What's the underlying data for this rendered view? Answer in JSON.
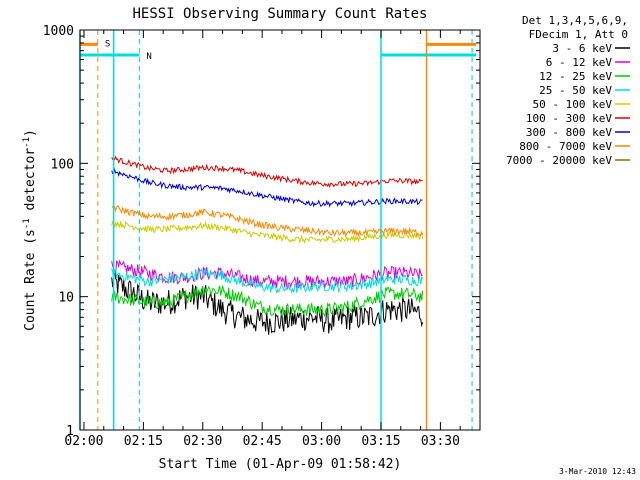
{
  "chart_data": {
    "type": "line",
    "title": "HESSI Observing Summary Count Rates",
    "xlabel": "Start Time (01-Apr-09 01:58:42)",
    "ylabel_main": "Count Rate (s",
    "ylabel_sup1": "-1",
    "ylabel_mid": " detector",
    "ylabel_sup2": "-1",
    "ylabel_end": ")",
    "y_scale": "log",
    "ylim": [
      1,
      1000
    ],
    "xlim_minutes": [
      -1,
      100
    ],
    "x_ticks": [
      {
        "m": 0,
        "label": "02:00"
      },
      {
        "m": 15,
        "label": "02:15"
      },
      {
        "m": 30,
        "label": "02:30"
      },
      {
        "m": 45,
        "label": "02:45"
      },
      {
        "m": 60,
        "label": "03:00"
      },
      {
        "m": 75,
        "label": "03:15"
      },
      {
        "m": 90,
        "label": "03:30"
      }
    ],
    "y_ticks": [
      {
        "v": 1,
        "label": "1"
      },
      {
        "v": 10,
        "label": "10"
      },
      {
        "v": 100,
        "label": "100"
      },
      {
        "v": 1000,
        "label": "1000"
      }
    ],
    "legend_header": [
      "Det 1,3,4,5,6,9,",
      "FDecim 1, Att 0"
    ],
    "legend_position": "right",
    "data_start_minute": 7.0,
    "data_end_minute": 85.6,
    "series": [
      {
        "name": "3 - 6 keV",
        "color": "#000000",
        "noise": 0.1,
        "values": [
          13,
          11,
          9,
          9,
          10,
          10,
          8,
          7,
          6.5,
          6.5,
          6.8,
          7,
          6.5,
          7,
          7,
          8,
          8,
          7.5
        ]
      },
      {
        "name": "6 - 12 keV",
        "color": "#dd00dd",
        "noise": 0.05,
        "values": [
          17,
          16,
          15,
          14,
          14,
          15,
          15,
          14,
          13,
          13,
          13,
          13,
          13,
          13,
          14,
          15,
          15,
          14.5
        ]
      },
      {
        "name": "12 - 25 keV",
        "color": "#00cc00",
        "noise": 0.05,
        "values": [
          10,
          9.5,
          9,
          9,
          10,
          11.5,
          11,
          10,
          8.5,
          8,
          8,
          8,
          8,
          8.5,
          9.5,
          10.5,
          10.5,
          10
        ]
      },
      {
        "name": "25 - 50 keV",
        "color": "#00dddd",
        "noise": 0.04,
        "values": [
          15,
          14,
          13,
          13.5,
          14,
          15,
          14.5,
          13,
          12,
          11.5,
          11.5,
          12,
          12,
          12,
          12.5,
          13.5,
          13.5,
          13
        ]
      },
      {
        "name": "50 - 100 keV",
        "color": "#cccc00",
        "noise": 0.025,
        "values": [
          36,
          34,
          32,
          32,
          33,
          34,
          33,
          31,
          29,
          28,
          27,
          26.5,
          27,
          27,
          28,
          29,
          29,
          28.5
        ]
      },
      {
        "name": "100 - 300 keV",
        "color": "#dd0000",
        "noise": 0.02,
        "values": [
          110,
          100,
          92,
          88,
          90,
          93,
          92,
          88,
          82,
          78,
          74,
          71,
          70,
          70,
          71,
          74,
          74,
          72
        ]
      },
      {
        "name": "300 - 800 keV",
        "color": "#0000dd",
        "noise": 0.02,
        "values": [
          88,
          80,
          72,
          68,
          66,
          66,
          65,
          62,
          58,
          55,
          52,
          50,
          50,
          50,
          51,
          52,
          52,
          51
        ]
      },
      {
        "name": "800 - 7000 keV",
        "color": "#ff8800",
        "noise": 0.025,
        "values": [
          47,
          43,
          40,
          40,
          41,
          43,
          41,
          38,
          35,
          33,
          32,
          31,
          30,
          30,
          30,
          31,
          31,
          30
        ]
      },
      {
        "name": "7000 - 20000 keV",
        "color": "#996600",
        "noise": 0,
        "values": []
      }
    ],
    "annotations": {
      "saa_label": "S",
      "night_label": "N",
      "saa_color": "#ff8800",
      "night_color": "#00dddd",
      "saa_bars": [
        [
          -1,
          3.5
        ],
        [
          86.5,
          99
        ]
      ],
      "night_bars": [
        [
          -1,
          14
        ],
        [
          75,
          99
        ]
      ],
      "saa_bar_level": 780,
      "night_bar_level": 650,
      "saa_dashed": [
        3.5,
        98
      ],
      "night_dashed": [
        14,
        98
      ],
      "night_solid": [
        -1,
        7.5,
        75
      ],
      "saa_solid": [
        86.5
      ]
    }
  },
  "timestamp": "3-Mar-2010 12:43"
}
